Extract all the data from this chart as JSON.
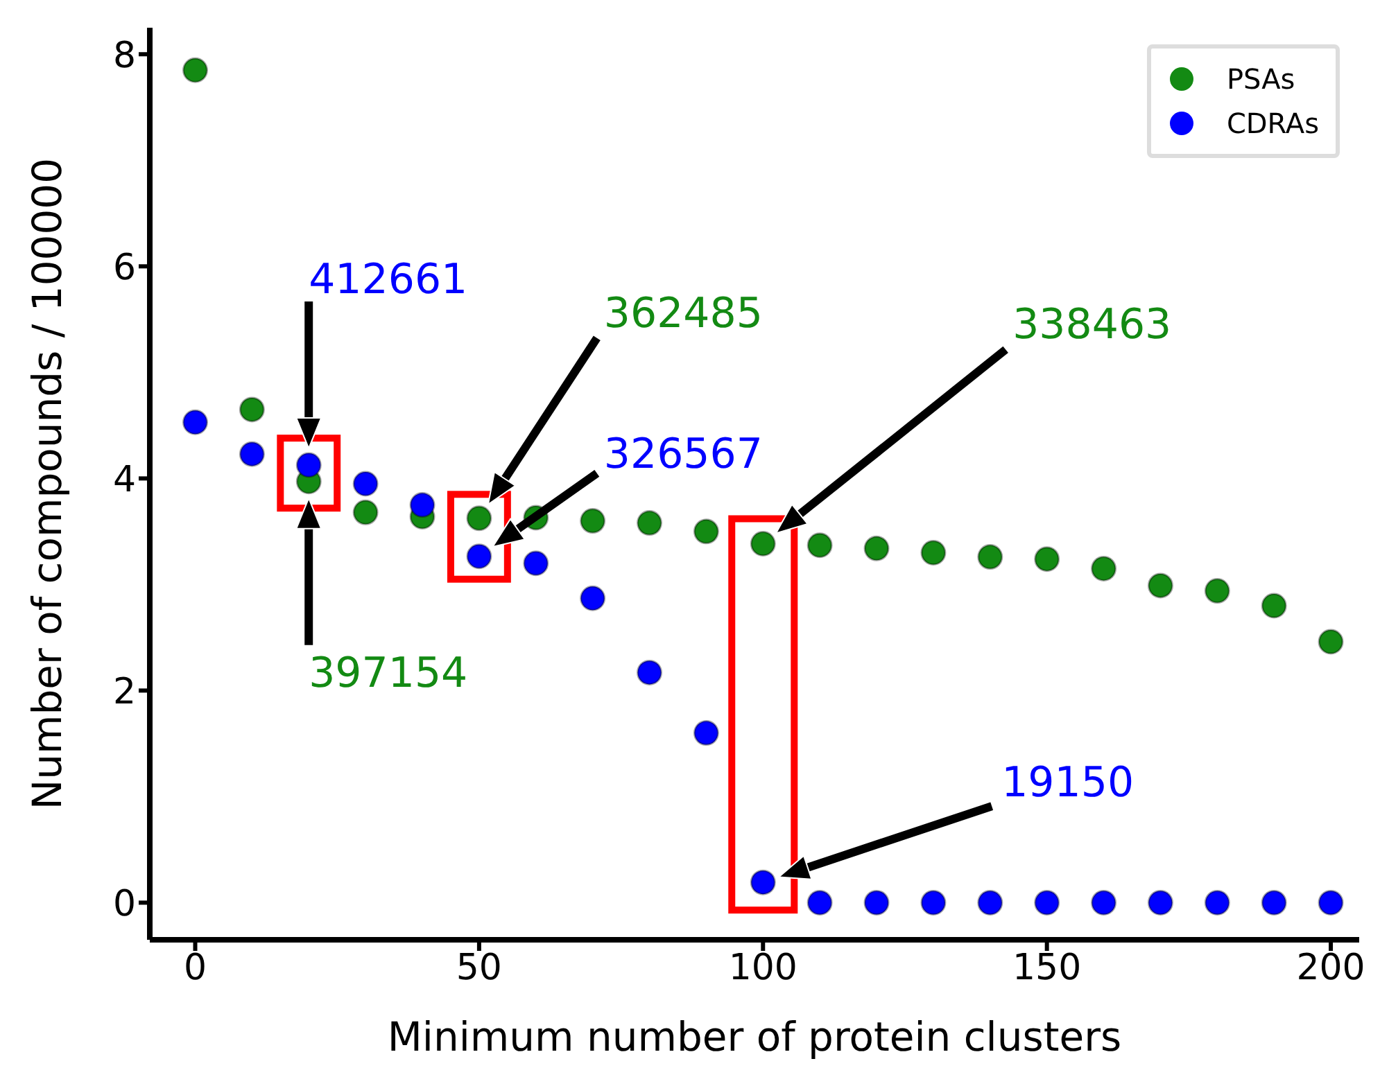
{
  "chart_data": {
    "type": "scatter",
    "xlabel": "Minimum number of protein clusters",
    "ylabel": "Number of compounds / 100000",
    "x": [
      0,
      10,
      20,
      30,
      40,
      50,
      60,
      70,
      80,
      90,
      100,
      110,
      120,
      130,
      140,
      150,
      160,
      170,
      180,
      190,
      200
    ],
    "series": [
      {
        "name": "PSAs",
        "color": "#138a13",
        "values": [
          7.85,
          4.65,
          3.97154,
          3.68,
          3.64,
          3.62485,
          3.63,
          3.6,
          3.58,
          3.5,
          3.38463,
          3.37,
          3.34,
          3.3,
          3.26,
          3.24,
          3.15,
          2.99,
          2.94,
          2.8,
          2.46
        ]
      },
      {
        "name": "CDRAs",
        "color": "#0000ff",
        "values": [
          4.53,
          4.23,
          4.12661,
          3.95,
          3.75,
          3.26567,
          3.2,
          2.87,
          2.17,
          1.6,
          0.1915,
          0,
          0,
          0,
          0,
          0,
          0,
          0,
          0,
          0,
          0
        ]
      }
    ],
    "xlim": [
      -8,
      205
    ],
    "ylim": [
      -0.35,
      8.25
    ],
    "xticks": [
      0,
      50,
      100,
      150,
      200
    ],
    "yticks": [
      0,
      2,
      4,
      6,
      8
    ],
    "marker": "circle",
    "legend": "top right",
    "grid": false,
    "annotations": [
      "412661",
      "397154",
      "362485",
      "326567",
      "338463",
      "19150"
    ]
  }
}
